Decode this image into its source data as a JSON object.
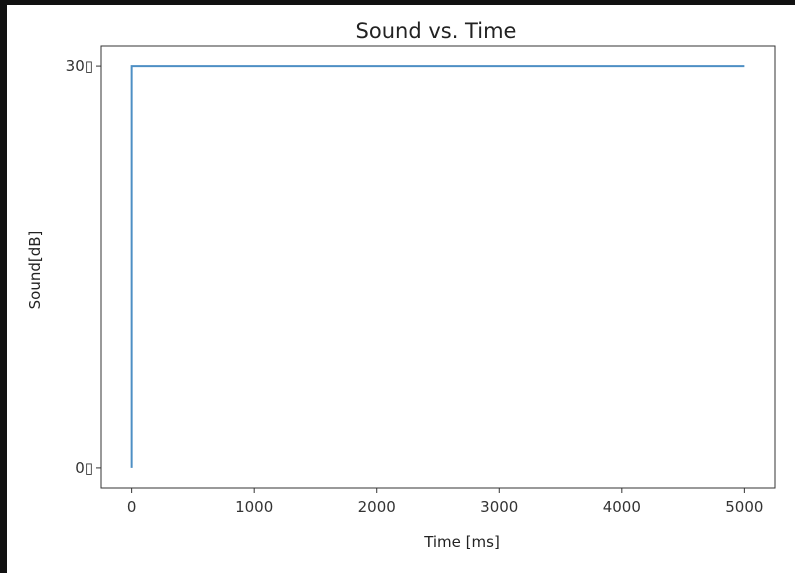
{
  "chart_data": {
    "type": "line",
    "title": "Sound vs. Time",
    "xlabel": "Time [ms]",
    "ylabel": "Sound[dB]",
    "xlim": [
      -250,
      5250
    ],
    "ylim": [
      -1.5,
      31.5
    ],
    "grid": false,
    "x_ticks": [
      0,
      1000,
      2000,
      3000,
      4000,
      5000
    ],
    "x_tick_labels": [
      "0",
      "1000",
      "2000",
      "3000",
      "4000",
      "5000"
    ],
    "y_ticks": [
      0,
      30
    ],
    "y_tick_labels": [
      "0▯",
      "30▯"
    ],
    "series": [
      {
        "color": "#4d8fc4",
        "x": [
          0,
          0,
          5000
        ],
        "y": [
          0,
          30,
          30
        ]
      }
    ]
  }
}
